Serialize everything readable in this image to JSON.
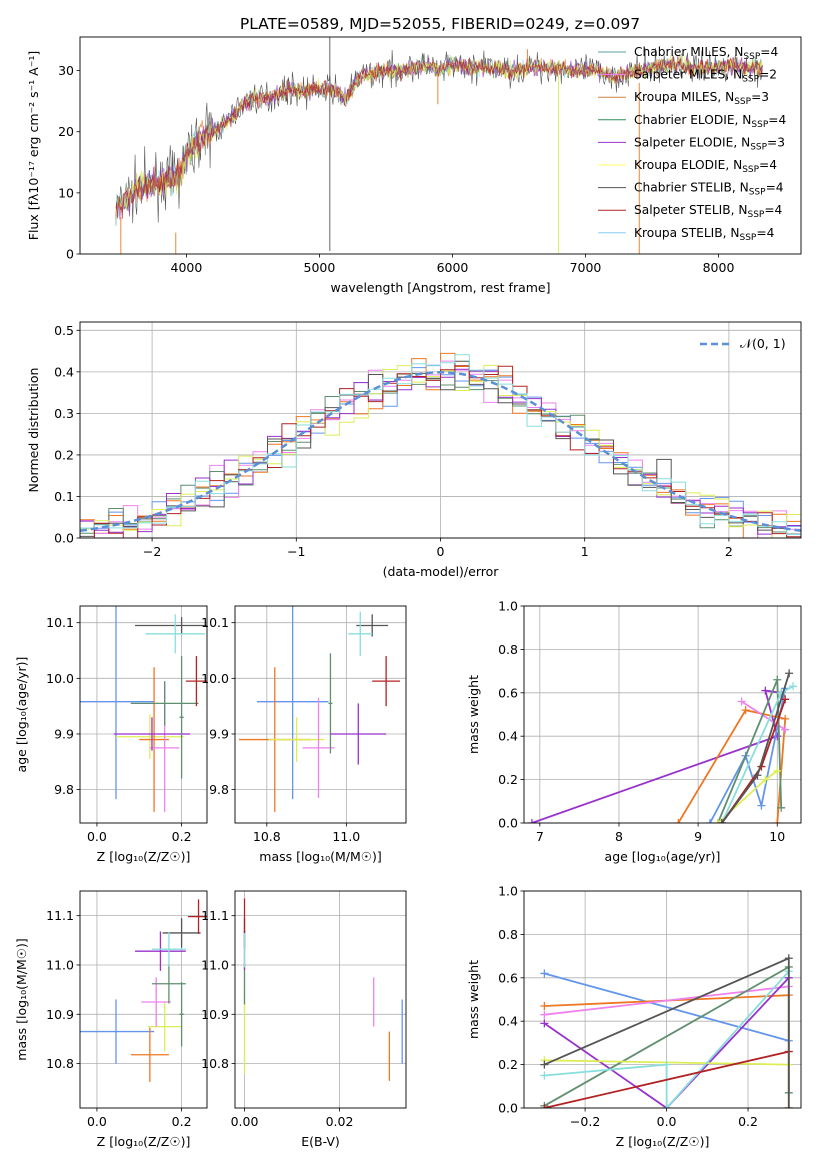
{
  "figure_title": "PLATE=0589, MJD=52055, FIBERID=0249, z=0.097",
  "colors": {
    "Chabrier MILES": "#5f9ea0",
    "Salpeter MILES": "#ee82ee",
    "Kroupa MILES": "#cd853f",
    "Chabrier ELODIE": "#2e8b57",
    "Salpeter ELODIE": "#9932cc",
    "Kroupa ELODIE": "#ffff66",
    "Chabrier STELIB": "#555555",
    "Salpeter STELIB": "#b22222",
    "Kroupa STELIB": "#87cefa",
    "model_blue": "#6495ed",
    "model_orange": "#ee7722",
    "model_pink": "#ee82ee",
    "model_green": "#5f8f6f",
    "model_purple": "#9932cc",
    "model_yellow": "#ddee55",
    "model_gray": "#555555",
    "model_red": "#b22222",
    "model_cyan": "#87dedd",
    "normal_line": "#5b8fd6"
  },
  "chart_data": [
    {
      "id": "spectrum",
      "type": "line",
      "title": "PLATE=0589, MJD=52055, FIBERID=0249, z=0.097",
      "xlabel": "wavelength [Angstrom, rest frame]",
      "ylabel": "Flux [fλ10⁻¹⁷ erg cm⁻² s⁻¹ A⁻¹]",
      "xlim": [
        3200,
        8620
      ],
      "ylim": [
        0,
        35.5
      ],
      "xticks": [
        4000,
        5000,
        6000,
        7000,
        8000
      ],
      "yticks": [
        0,
        10,
        20,
        30
      ],
      "grid": false,
      "legend_position": "top-right",
      "legend": [
        {
          "label": "Chabrier MILES, N",
          "sub": "SSP",
          "suffix": "=4"
        },
        {
          "label": "Salpeter MILES, N",
          "sub": "SSP",
          "suffix": "=2"
        },
        {
          "label": "Kroupa MILES, N",
          "sub": "SSP",
          "suffix": "=3"
        },
        {
          "label": "Chabrier ELODIE, N",
          "sub": "SSP",
          "suffix": "=4"
        },
        {
          "label": "Salpeter ELODIE, N",
          "sub": "SSP",
          "suffix": "=3"
        },
        {
          "label": "Kroupa ELODIE, N",
          "sub": "SSP",
          "suffix": "=4"
        },
        {
          "label": "Chabrier STELIB, N",
          "sub": "SSP",
          "suffix": "=4"
        },
        {
          "label": "Salpeter STELIB, N",
          "sub": "SSP",
          "suffix": "=4"
        },
        {
          "label": "Kroupa STELIB, N",
          "sub": "SSP",
          "suffix": "=4"
        }
      ],
      "continuum": [
        [
          3470,
          7
        ],
        [
          3550,
          9
        ],
        [
          3650,
          11
        ],
        [
          3750,
          11.5
        ],
        [
          3850,
          12
        ],
        [
          3950,
          13
        ],
        [
          4000,
          16
        ],
        [
          4100,
          19
        ],
        [
          4200,
          20
        ],
        [
          4300,
          21.5
        ],
        [
          4400,
          24
        ],
        [
          4500,
          25.5
        ],
        [
          4600,
          25.5
        ],
        [
          4700,
          26.5
        ],
        [
          4800,
          27
        ],
        [
          4900,
          26.5
        ],
        [
          5000,
          27
        ],
        [
          5100,
          27
        ],
        [
          5200,
          25.5
        ],
        [
          5300,
          29
        ],
        [
          5400,
          29.5
        ],
        [
          5500,
          30
        ],
        [
          5600,
          30
        ],
        [
          5700,
          30.5
        ],
        [
          5800,
          31
        ],
        [
          5900,
          30
        ],
        [
          6000,
          31
        ],
        [
          6100,
          30.5
        ],
        [
          6200,
          30.5
        ],
        [
          6300,
          30.5
        ],
        [
          6400,
          30
        ],
        [
          6500,
          30
        ],
        [
          6600,
          30.5
        ],
        [
          6700,
          30.5
        ],
        [
          6800,
          30.5
        ],
        [
          6900,
          30
        ],
        [
          7000,
          30
        ],
        [
          7100,
          30
        ],
        [
          7200,
          29
        ],
        [
          7300,
          29.5
        ],
        [
          7400,
          30
        ],
        [
          7500,
          30.5
        ],
        [
          7600,
          31
        ],
        [
          7700,
          31
        ],
        [
          7800,
          30.5
        ],
        [
          7900,
          30.5
        ],
        [
          8000,
          30.5
        ],
        [
          8100,
          31
        ],
        [
          8200,
          30.5
        ],
        [
          8300,
          30.5
        ]
      ],
      "spikes": [
        [
          5078,
          35.5,
          0.5
        ],
        [
          3507,
          0,
          6.0
        ],
        [
          3920,
          0,
          3.5
        ],
        [
          6797,
          0,
          30.0
        ],
        [
          7404,
          0,
          28.0
        ],
        [
          5890,
          24.5,
          29.5
        ],
        [
          6563,
          33.5,
          30.5
        ]
      ]
    },
    {
      "id": "residuals",
      "type": "bar",
      "xlabel": "(data-model)/error",
      "ylabel": "Normed distribution",
      "xlim": [
        -2.5,
        2.5
      ],
      "ylim": [
        0,
        0.52
      ],
      "xticks": [
        -2,
        -1,
        0,
        1,
        2
      ],
      "yticks": [
        0.0,
        0.1,
        0.2,
        0.3,
        0.4,
        0.5
      ],
      "grid": true,
      "legend_position": "top-right",
      "legend": [
        {
          "label": "𝒩(0, 1)"
        }
      ],
      "bin_width": 0.1,
      "histograms": 9,
      "values_note": "histograms of residuals around a unit normal"
    },
    {
      "id": "z_age",
      "type": "scatter",
      "xlabel": "Z [log₁₀(Z/Z☉)]",
      "ylabel": "age  [log₁₀(age/yr)]",
      "xlim": [
        -0.04,
        0.26
      ],
      "ylim": [
        9.74,
        10.13
      ],
      "xticks": [
        0.0,
        0.2
      ],
      "xticklabels": [
        "0.0",
        "0.2"
      ],
      "yticks": [
        9.8,
        9.9,
        10.0,
        10.1
      ],
      "grid": true,
      "points": [
        {
          "x": 0.045,
          "y": 9.958,
          "xerr": 0.09,
          "yerr": 0.175,
          "color": "model_blue"
        },
        {
          "x": 0.125,
          "y": 9.895,
          "xerr": 0.08,
          "yerr": 0.04,
          "color": "model_yellow"
        },
        {
          "x": 0.135,
          "y": 9.89,
          "xerr": 0.035,
          "yerr": 0.13,
          "color": "model_orange"
        },
        {
          "x": 0.16,
          "y": 9.875,
          "xerr": 0.035,
          "yerr": 0.115,
          "color": "model_pink"
        },
        {
          "x": 0.13,
          "y": 9.9,
          "xerr": 0.09,
          "yerr": 0.03,
          "color": "model_purple"
        },
        {
          "x": 0.16,
          "y": 9.955,
          "xerr": 0.08,
          "yerr": 0.04,
          "color": "model_green"
        },
        {
          "x": 0.2,
          "y": 10.095,
          "xerr": 0.11,
          "yerr": 0.015,
          "color": "model_gray"
        },
        {
          "x": 0.185,
          "y": 10.08,
          "xerr": 0.07,
          "yerr": 0.035,
          "color": "model_cyan"
        },
        {
          "x": 0.235,
          "y": 9.995,
          "xerr": 0.025,
          "yerr": 0.045,
          "color": "model_red"
        },
        {
          "x": 0.2,
          "y": 9.93,
          "xerr": 0.005,
          "yerr": 0.11,
          "color": "model_green"
        }
      ]
    },
    {
      "id": "mass_age",
      "type": "scatter",
      "xlabel": "mass [log₁₀(M/M☉)]",
      "ylabel": "",
      "xlim": [
        10.72,
        11.15
      ],
      "ylim": [
        9.74,
        10.13
      ],
      "xticks": [
        10.8,
        11.0
      ],
      "xticklabels": [
        "10.8",
        "11.0"
      ],
      "yticks": [
        9.8,
        9.9,
        10.0,
        10.1
      ],
      "grid": true,
      "points": [
        {
          "x": 10.865,
          "y": 9.958,
          "xerr": 0.09,
          "yerr": 0.175,
          "color": "model_blue"
        },
        {
          "x": 10.82,
          "y": 9.89,
          "xerr": 0.09,
          "yerr": 0.13,
          "color": "model_orange"
        },
        {
          "x": 10.875,
          "y": 9.89,
          "xerr": 0.07,
          "yerr": 0.04,
          "color": "model_yellow"
        },
        {
          "x": 10.93,
          "y": 9.875,
          "xerr": 0.04,
          "yerr": 0.09,
          "color": "model_pink"
        },
        {
          "x": 10.96,
          "y": 9.955,
          "xerr": 0.005,
          "yerr": 0.09,
          "color": "model_green"
        },
        {
          "x": 11.03,
          "y": 9.9,
          "xerr": 0.07,
          "yerr": 0.055,
          "color": "model_purple"
        },
        {
          "x": 11.065,
          "y": 10.095,
          "xerr": 0.04,
          "yerr": 0.02,
          "color": "model_gray"
        },
        {
          "x": 11.035,
          "y": 10.08,
          "xerr": 0.03,
          "yerr": 0.04,
          "color": "model_cyan"
        },
        {
          "x": 11.1,
          "y": 9.995,
          "xerr": 0.035,
          "yerr": 0.045,
          "color": "model_red"
        }
      ]
    },
    {
      "id": "age_weight",
      "type": "line",
      "xlabel": "age  [log₁₀(age/yr)]",
      "ylabel": "mass weight",
      "xlim": [
        6.8,
        10.3
      ],
      "ylim": [
        0,
        1.0
      ],
      "xticks": [
        7,
        8,
        9,
        10
      ],
      "xticklabels": [
        "7",
        "8",
        "9",
        "10"
      ],
      "yticks": [
        0.0,
        0.2,
        0.4,
        0.6,
        0.8,
        1.0
      ],
      "grid": true,
      "series": [
        {
          "color": "model_purple",
          "points": [
            [
              6.9,
              0.0
            ],
            [
              10.0,
              0.4
            ],
            [
              9.85,
              0.61
            ],
            [
              10.05,
              0.6
            ]
          ]
        },
        {
          "color": "model_orange",
          "points": [
            [
              8.75,
              0.0
            ],
            [
              9.6,
              0.52
            ],
            [
              10.1,
              0.48
            ],
            [
              10.0,
              0.0
            ]
          ]
        },
        {
          "color": "model_blue",
          "points": [
            [
              9.15,
              0.0
            ],
            [
              9.6,
              0.31
            ],
            [
              9.8,
              0.08
            ],
            [
              10.1,
              0.62
            ]
          ]
        },
        {
          "color": "model_pink",
          "points": [
            [
              9.55,
              0.56
            ],
            [
              10.1,
              0.43
            ]
          ]
        },
        {
          "color": "model_green",
          "points": [
            [
              9.25,
              0.0
            ],
            [
              10.0,
              0.66
            ],
            [
              10.05,
              0.07
            ]
          ]
        },
        {
          "color": "model_yellow",
          "points": [
            [
              9.25,
              0.0
            ],
            [
              9.85,
              0.2
            ],
            [
              10.0,
              0.24
            ]
          ]
        },
        {
          "color": "model_cyan",
          "points": [
            [
              9.3,
              0.0
            ],
            [
              10.05,
              0.6
            ],
            [
              10.2,
              0.63
            ]
          ]
        },
        {
          "color": "model_red",
          "points": [
            [
              9.3,
              0.0
            ],
            [
              9.8,
              0.26
            ],
            [
              10.1,
              0.57
            ]
          ]
        },
        {
          "color": "model_gray",
          "points": [
            [
              9.3,
              0.0
            ],
            [
              9.75,
              0.22
            ],
            [
              10.15,
              0.69
            ]
          ]
        }
      ]
    },
    {
      "id": "z_mass",
      "type": "scatter",
      "xlabel": "Z [log₁₀(Z/Z☉)]",
      "ylabel": "mass [log₁₀(M/M☉)]",
      "xlim": [
        -0.04,
        0.26
      ],
      "ylim": [
        10.71,
        11.15
      ],
      "xticks": [
        0.0,
        0.2
      ],
      "xticklabels": [
        "0.0",
        "0.2"
      ],
      "yticks": [
        10.8,
        10.9,
        11.0,
        11.1
      ],
      "grid": true,
      "points": [
        {
          "x": 0.045,
          "y": 10.865,
          "xerr": 0.09,
          "yerr": 0.065,
          "color": "model_blue"
        },
        {
          "x": 0.125,
          "y": 10.818,
          "xerr": 0.045,
          "yerr": 0.055,
          "color": "model_orange"
        },
        {
          "x": 0.16,
          "y": 10.875,
          "xerr": 0.04,
          "yerr": 0.05,
          "color": "model_yellow"
        },
        {
          "x": 0.14,
          "y": 10.925,
          "xerr": 0.035,
          "yerr": 0.05,
          "color": "model_pink"
        },
        {
          "x": 0.17,
          "y": 10.962,
          "xerr": 0.04,
          "yerr": 0.04,
          "color": "model_green"
        },
        {
          "x": 0.2,
          "y": 10.9,
          "xerr": 0.005,
          "yerr": 0.065,
          "color": "model_green"
        },
        {
          "x": 0.15,
          "y": 11.028,
          "xerr": 0.06,
          "yerr": 0.04,
          "color": "model_purple"
        },
        {
          "x": 0.2,
          "y": 11.065,
          "xerr": 0.045,
          "yerr": 0.03,
          "color": "model_gray"
        },
        {
          "x": 0.17,
          "y": 11.032,
          "xerr": 0.04,
          "yerr": 0.035,
          "color": "model_cyan"
        },
        {
          "x": 0.24,
          "y": 11.098,
          "xerr": 0.025,
          "yerr": 0.035,
          "color": "model_red"
        }
      ]
    },
    {
      "id": "ebv_mass",
      "type": "scatter",
      "xlabel": "E(B-V)",
      "ylabel": "",
      "xlim": [
        -0.002,
        0.034
      ],
      "ylim": [
        10.71,
        11.15
      ],
      "xticks": [
        0.0,
        0.02
      ],
      "xticklabels": [
        "0.00",
        "0.02"
      ],
      "yticks": [
        10.8,
        10.9,
        11.0,
        11.1
      ],
      "grid": true,
      "points": [
        {
          "x": 0.0332,
          "y": 10.865,
          "xerr": 0,
          "yerr": 0.065,
          "color": "model_blue"
        },
        {
          "x": 0.0305,
          "y": 10.815,
          "xerr": 0,
          "yerr": 0.05,
          "color": "model_orange"
        },
        {
          "x": 0.0272,
          "y": 10.925,
          "xerr": 0,
          "yerr": 0.05,
          "color": "model_pink"
        },
        {
          "x": 0.0,
          "y": 10.87,
          "xerr": 0,
          "yerr": 0.09,
          "color": "model_yellow"
        },
        {
          "x": 0.0,
          "y": 10.96,
          "xerr": 0,
          "yerr": 0.04,
          "color": "model_green"
        },
        {
          "x": 0.0,
          "y": 11.03,
          "xerr": 0,
          "yerr": 0.04,
          "color": "model_purple"
        },
        {
          "x": 0.0,
          "y": 11.065,
          "xerr": 0,
          "yerr": 0.03,
          "color": "model_gray"
        },
        {
          "x": 0.0,
          "y": 11.03,
          "xerr": 0,
          "yerr": 0.035,
          "color": "model_cyan"
        },
        {
          "x": 0.0,
          "y": 11.1,
          "xerr": 0,
          "yerr": 0.035,
          "color": "model_red"
        }
      ]
    },
    {
      "id": "z_weight",
      "type": "line",
      "xlabel": "Z [log₁₀(Z/Z☉)]",
      "ylabel": "mass weight",
      "xlim": [
        -0.35,
        0.33
      ],
      "ylim": [
        0,
        1.0
      ],
      "xticks": [
        -0.2,
        0.0,
        0.2
      ],
      "xticklabels": [
        "−0.2",
        "0.0",
        "0.2"
      ],
      "yticks": [
        0.0,
        0.2,
        0.4,
        0.6,
        0.8,
        1.0
      ],
      "grid": true,
      "series": [
        {
          "color": "model_blue",
          "points": [
            [
              -0.3,
              0.62
            ],
            [
              0.3,
              0.31
            ]
          ]
        },
        {
          "color": "model_orange",
          "points": [
            [
              -0.3,
              0.47
            ],
            [
              0.3,
              0.52
            ],
            [
              0.3,
              0.0
            ]
          ]
        },
        {
          "color": "model_pink",
          "points": [
            [
              -0.3,
              0.43
            ],
            [
              0.3,
              0.56
            ]
          ]
        },
        {
          "color": "model_purple",
          "points": [
            [
              -0.3,
              0.39
            ],
            [
              0.0,
              0.0
            ],
            [
              0.3,
              0.6
            ]
          ]
        },
        {
          "color": "model_green",
          "points": [
            [
              -0.3,
              0.01
            ],
            [
              0.3,
              0.65
            ],
            [
              0.3,
              0.07
            ]
          ]
        },
        {
          "color": "model_yellow",
          "points": [
            [
              -0.3,
              0.22
            ],
            [
              0.3,
              0.2
            ]
          ]
        },
        {
          "color": "model_cyan",
          "points": [
            [
              -0.3,
              0.15
            ],
            [
              0.0,
              0.2
            ],
            [
              0.0,
              0.0
            ],
            [
              0.3,
              0.63
            ]
          ]
        },
        {
          "color": "model_red",
          "points": [
            [
              -0.3,
              0.0
            ],
            [
              0.3,
              0.26
            ]
          ]
        },
        {
          "color": "model_gray",
          "points": [
            [
              -0.3,
              0.2
            ],
            [
              0.3,
              0.69
            ],
            [
              0.3,
              0.0
            ]
          ]
        }
      ]
    }
  ]
}
